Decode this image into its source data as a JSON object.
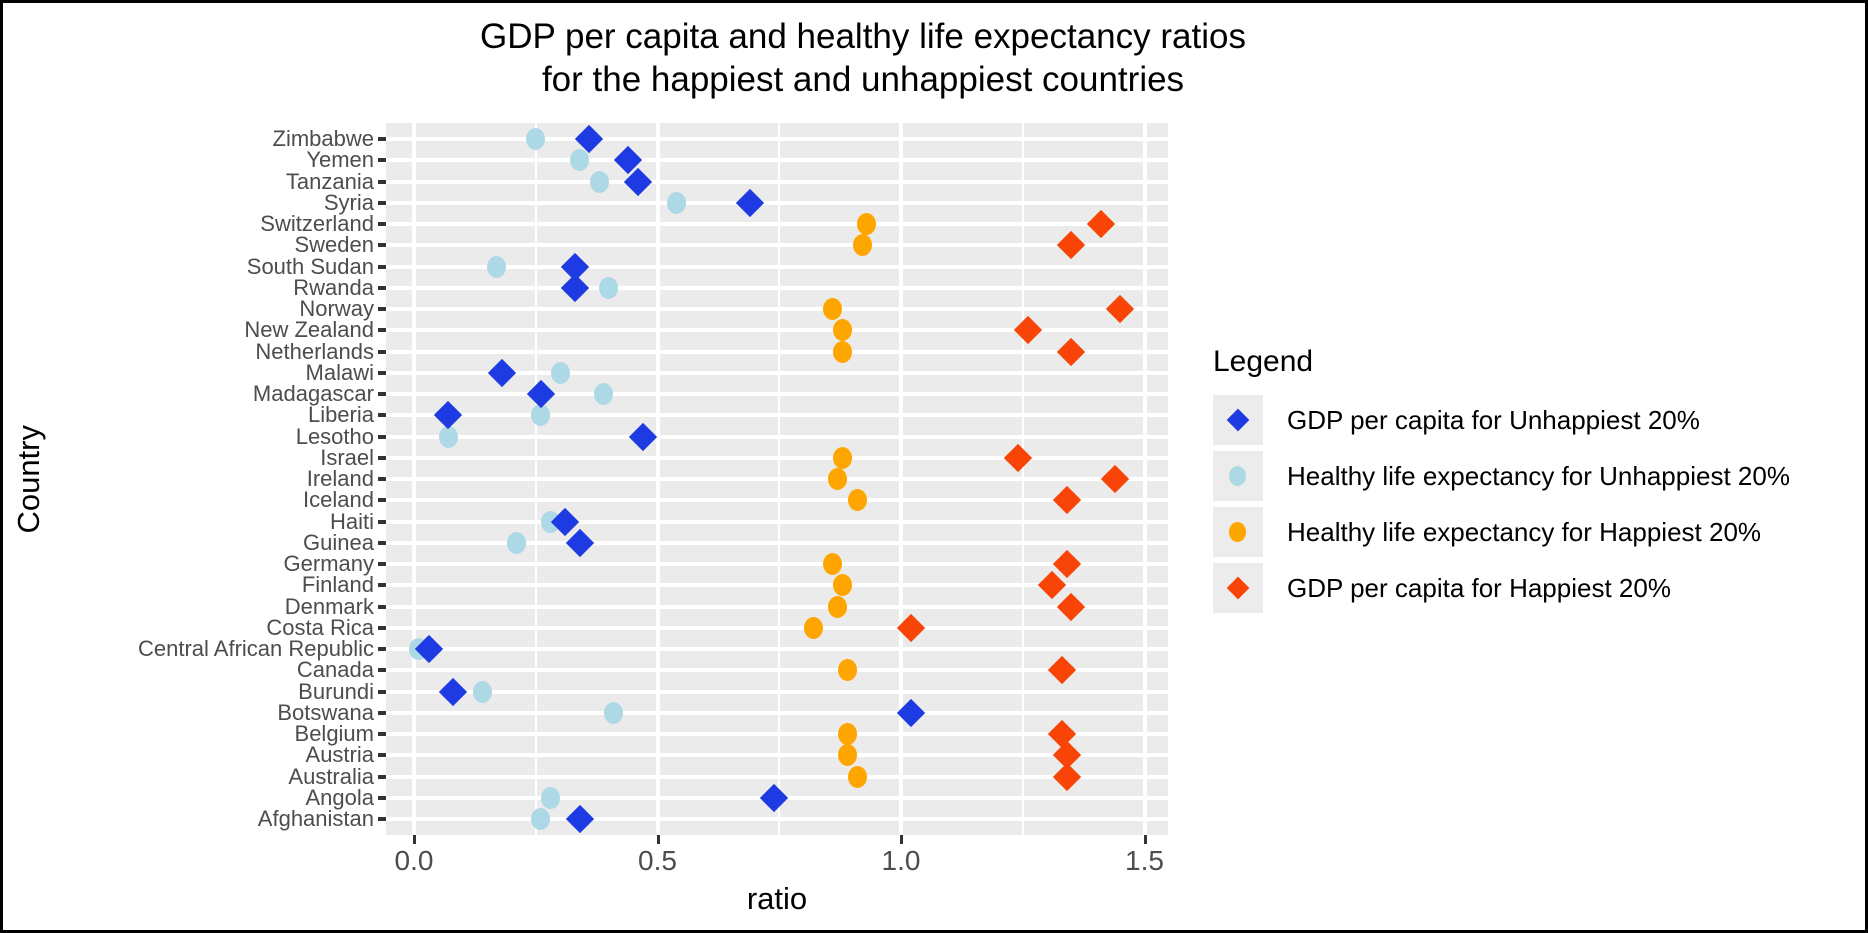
{
  "figure": {
    "background": "#ffffff",
    "panel_background": "#ebebeb",
    "grid_color": "#ffffff",
    "axis_text_color": "#4d4d4d",
    "tick_mark_color": "#333333"
  },
  "chart_data": {
    "type": "scatter",
    "orientation": "horizontal",
    "title_lines": [
      "GDP per capita and healthy life expectancy ratios",
      "for the happiest and unhappiest countries"
    ],
    "xlabel": "ratio",
    "ylabel": "Country",
    "x_ticks": [
      0.0,
      0.5,
      1.0,
      1.5
    ],
    "x_tick_labels": [
      "0.0",
      "0.5",
      "1.0",
      "1.5"
    ],
    "x_minor_ticks": [
      0.25,
      0.75,
      1.25
    ],
    "xlim": [
      -0.06,
      1.56
    ],
    "grid": true,
    "categories": [
      "Zimbabwe",
      "Yemen",
      "Tanzania",
      "Syria",
      "Switzerland",
      "Sweden",
      "South Sudan",
      "Rwanda",
      "Norway",
      "New Zealand",
      "Netherlands",
      "Malawi",
      "Madagascar",
      "Liberia",
      "Lesotho",
      "Israel",
      "Ireland",
      "Iceland",
      "Haiti",
      "Guinea",
      "Germany",
      "Finland",
      "Denmark",
      "Costa Rica",
      "Central African Republic",
      "Canada",
      "Burundi",
      "Botswana",
      "Belgium",
      "Austria",
      "Australia",
      "Angola",
      "Afghanistan"
    ],
    "legend": {
      "title": "Legend",
      "position": "right"
    },
    "series": [
      {
        "name": "GDP per capita for Unhappiest 20%",
        "marker": "diamond",
        "color": "#1e3be3",
        "points": {
          "Zimbabwe": 0.36,
          "Yemen": 0.44,
          "Tanzania": 0.46,
          "Syria": 0.69,
          "South Sudan": 0.33,
          "Rwanda": 0.33,
          "Malawi": 0.18,
          "Madagascar": 0.26,
          "Liberia": 0.07,
          "Lesotho": 0.47,
          "Haiti": 0.31,
          "Guinea": 0.34,
          "Central African Republic": 0.03,
          "Burundi": 0.08,
          "Botswana": 1.02,
          "Angola": 0.74,
          "Afghanistan": 0.34
        }
      },
      {
        "name": "Healthy life expectancy for Unhappiest 20%",
        "marker": "circle",
        "color": "#add8e6",
        "points": {
          "Zimbabwe": 0.25,
          "Yemen": 0.34,
          "Tanzania": 0.38,
          "Syria": 0.54,
          "South Sudan": 0.17,
          "Rwanda": 0.4,
          "Malawi": 0.3,
          "Madagascar": 0.39,
          "Liberia": 0.26,
          "Lesotho": 0.07,
          "Haiti": 0.28,
          "Guinea": 0.21,
          "Central African Republic": 0.01,
          "Burundi": 0.14,
          "Botswana": 0.41,
          "Angola": 0.28,
          "Afghanistan": 0.26
        }
      },
      {
        "name": "Healthy life expectancy for Happiest 20%",
        "marker": "circle",
        "color": "#ffa500",
        "points": {
          "Switzerland": 0.93,
          "Sweden": 0.92,
          "Norway": 0.86,
          "New Zealand": 0.88,
          "Netherlands": 0.88,
          "Israel": 0.88,
          "Ireland": 0.87,
          "Iceland": 0.91,
          "Germany": 0.86,
          "Finland": 0.88,
          "Denmark": 0.87,
          "Costa Rica": 0.82,
          "Canada": 0.89,
          "Belgium": 0.89,
          "Austria": 0.89,
          "Australia": 0.91
        }
      },
      {
        "name": "GDP per capita for Happiest 20%",
        "marker": "diamond",
        "color": "#f84407",
        "points": {
          "Switzerland": 1.41,
          "Sweden": 1.35,
          "Norway": 1.45,
          "New Zealand": 1.26,
          "Netherlands": 1.35,
          "Israel": 1.24,
          "Ireland": 1.44,
          "Iceland": 1.34,
          "Germany": 1.34,
          "Finland": 1.31,
          "Denmark": 1.35,
          "Costa Rica": 1.02,
          "Canada": 1.33,
          "Belgium": 1.33,
          "Austria": 1.34,
          "Australia": 1.34
        }
      }
    ]
  }
}
